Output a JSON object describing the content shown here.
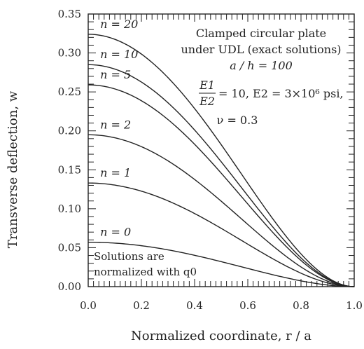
{
  "chart_data": {
    "type": "line",
    "xlabel": "Normalized coordinate,  r / a",
    "ylabel": "Transverse deflection,  w",
    "xlim": [
      0.0,
      1.0
    ],
    "ylim": [
      0.0,
      0.35
    ],
    "xticks": [
      "0.0",
      "0.2",
      "0.4",
      "0.6",
      "0.8",
      "1.0"
    ],
    "yticks": [
      "0.00",
      "0.05",
      "0.10",
      "0.15",
      "0.20",
      "0.25",
      "0.30",
      "0.35"
    ],
    "grid": false,
    "series": [
      {
        "name": "n = 20",
        "w0": 0.324
      },
      {
        "name": "n = 10",
        "w0": 0.285
      },
      {
        "name": "n = 5",
        "w0": 0.259
      },
      {
        "name": "n = 2",
        "w0": 0.195
      },
      {
        "name": "n = 1",
        "w0": 0.133
      },
      {
        "name": "n = 0",
        "w0": 0.057
      }
    ],
    "annotations": {
      "title_line1": "Clamped circular plate",
      "title_line2": "under UDL (exact solutions)",
      "ratio": "a / h = 100",
      "modulus_numerator": "E1",
      "modulus_denominator": "E2",
      "modulus_values": "= 10,  E2 = 3×10⁶ psi,",
      "poisson": "ν = 0.3",
      "note_line1": "Solutions are",
      "note_line2": "normalized with q0"
    },
    "line_color": "#222222"
  }
}
